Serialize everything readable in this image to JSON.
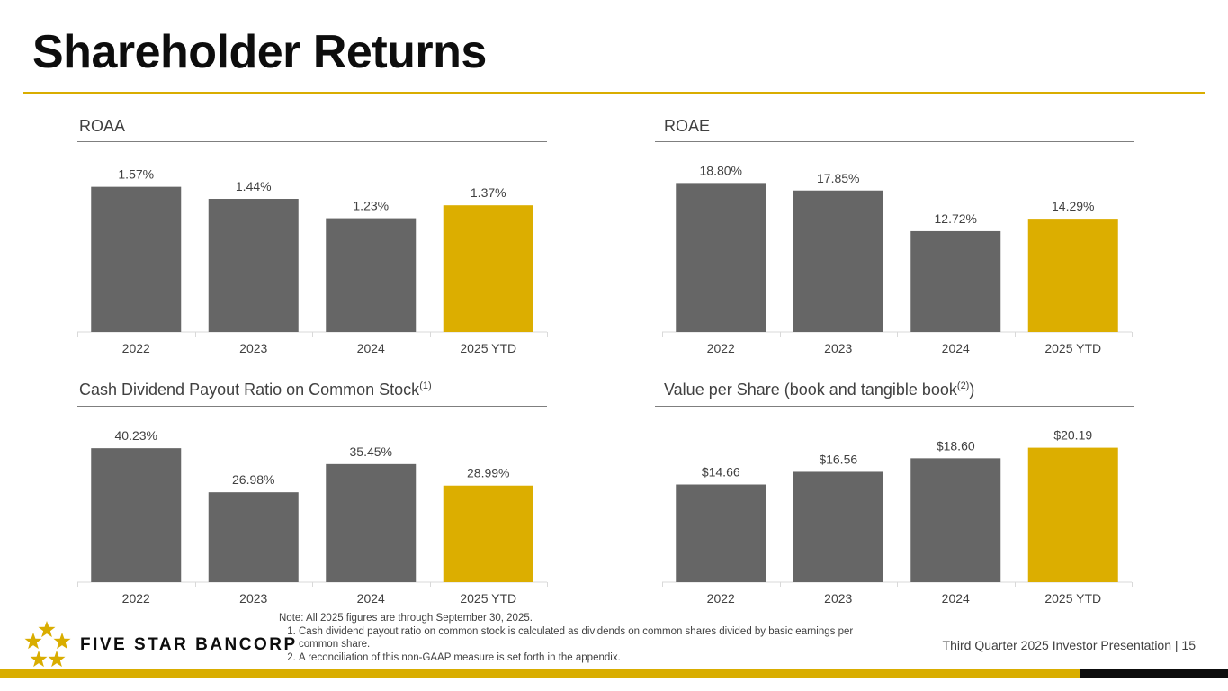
{
  "page": {
    "title": "Shareholder Returns"
  },
  "colors": {
    "accent": "#d9ad00",
    "bar_gray": "#666666",
    "bar_highlight": "#dcae00",
    "text": "#404040",
    "black": "#0d0d0d"
  },
  "chart_data": [
    {
      "type": "bar",
      "title": "ROAA",
      "title_sup": "",
      "title_suffix": "",
      "categories": [
        "2022",
        "2023",
        "2024",
        "2025 YTD"
      ],
      "values": [
        1.57,
        1.44,
        1.23,
        1.37
      ],
      "labels": [
        "1.57%",
        "1.44%",
        "1.23%",
        "1.37%"
      ],
      "highlight_index": 3,
      "ylim": [
        0,
        1.8
      ],
      "xlabel": "",
      "ylabel": ""
    },
    {
      "type": "bar",
      "title": "ROAE",
      "title_sup": "",
      "title_suffix": "",
      "categories": [
        "2022",
        "2023",
        "2024",
        "2025 YTD"
      ],
      "values": [
        18.8,
        17.85,
        12.72,
        14.29
      ],
      "labels": [
        "18.80%",
        "17.85%",
        "12.72%",
        "14.29%"
      ],
      "highlight_index": 3,
      "ylim": [
        0,
        21
      ],
      "xlabel": "",
      "ylabel": ""
    },
    {
      "type": "bar",
      "title": "Cash Dividend Payout Ratio on Common Stock",
      "title_sup": "(1)",
      "title_suffix": "",
      "categories": [
        "2022",
        "2023",
        "2024",
        "2025 YTD"
      ],
      "values": [
        40.23,
        26.98,
        35.45,
        28.99
      ],
      "labels": [
        "40.23%",
        "26.98%",
        "35.45%",
        "28.99%"
      ],
      "highlight_index": 3,
      "ylim": [
        0,
        50
      ],
      "xlabel": "",
      "ylabel": ""
    },
    {
      "type": "bar",
      "title": "Value per Share (book and tangible book",
      "title_sup": "(2)",
      "title_suffix": ")",
      "categories": [
        "2022",
        "2023",
        "2024",
        "2025 YTD"
      ],
      "values": [
        14.66,
        16.56,
        18.6,
        20.19
      ],
      "labels": [
        "$14.66",
        "$16.56",
        "$18.60",
        "$20.19"
      ],
      "highlight_index": 3,
      "ylim": [
        0,
        25
      ],
      "xlabel": "",
      "ylabel": ""
    }
  ],
  "logo": {
    "text": "FIVE STAR BANCORP"
  },
  "notes": {
    "intro": "Note: All 2025 figures are through September 30, 2025.",
    "items": [
      "Cash dividend payout ratio on common stock is calculated as dividends on common shares divided by basic earnings per common share.",
      "A reconciliation of this non-GAAP measure is set forth in the appendix."
    ]
  },
  "footer": {
    "presentation": "Third Quarter 2025 Investor Presentation |",
    "page_number": "15"
  }
}
